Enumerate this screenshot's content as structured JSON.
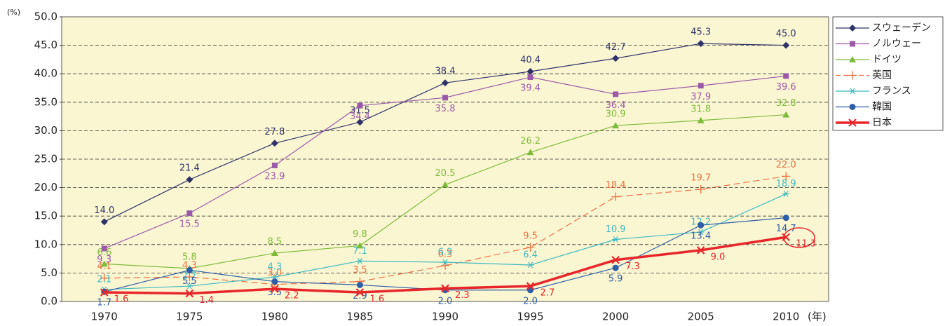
{
  "chart_data": {
    "type": "line",
    "y_label": "(%)",
    "x_label": "(年)",
    "categories": [
      "1970",
      "1975",
      "1980",
      "1985",
      "1990",
      "1995",
      "2000",
      "2005",
      "2010"
    ],
    "ylim": [
      0,
      50
    ],
    "yticks": [
      {
        "value": 0,
        "label": "0.0"
      },
      {
        "value": 5,
        "label": "5.0"
      },
      {
        "value": 10,
        "label": "10.0"
      },
      {
        "value": 15,
        "label": "15.0"
      },
      {
        "value": 20,
        "label": "20.0"
      },
      {
        "value": 25,
        "label": "25.0"
      },
      {
        "value": 30,
        "label": "30.0"
      },
      {
        "value": 35,
        "label": "35.0"
      },
      {
        "value": 40,
        "label": "40.0"
      },
      {
        "value": 45,
        "label": "45.0"
      },
      {
        "value": 50,
        "label": "50.0"
      }
    ],
    "grid": true,
    "legend": "right",
    "series": [
      {
        "name": "スウェーデン",
        "color": "#2e3368",
        "values": [
          14.0,
          21.4,
          27.8,
          31.5,
          38.4,
          40.4,
          42.7,
          45.3,
          45.0
        ],
        "value_labels": [
          "14.0",
          "21.4",
          "27.8",
          "31.5",
          "38.4",
          "40.4",
          "42.7",
          "45.3",
          "45.0"
        ]
      },
      {
        "name": "ノルウェー",
        "color": "#9b5aa8",
        "values": [
          9.3,
          15.5,
          23.9,
          34.4,
          35.8,
          39.4,
          36.4,
          37.9,
          39.6
        ],
        "value_labels": [
          "9.3",
          "15.5",
          "23.9",
          "34.4",
          "35.8",
          "39.4",
          "36.4",
          "37.9",
          "39.6"
        ]
      },
      {
        "name": "ドイツ",
        "color": "#7dbb3a",
        "values": [
          6.6,
          5.8,
          8.5,
          9.8,
          20.5,
          26.2,
          30.9,
          31.8,
          32.8
        ],
        "value_labels": [
          "6.6",
          "5.8",
          "8.5",
          "9.8",
          "20.5",
          "26.2",
          "30.9",
          "31.8",
          "32.8"
        ]
      },
      {
        "name": "英国",
        "color": "#ee7040",
        "values": [
          4.1,
          4.3,
          3.0,
          3.5,
          6.3,
          9.5,
          18.4,
          19.7,
          22.0
        ],
        "value_labels": [
          "4.1",
          "4.3",
          "3.0",
          "3.5",
          "6.3",
          "9.5",
          "18.4",
          "19.7",
          "22.0"
        ]
      },
      {
        "name": "フランス",
        "color": "#3fb9c0",
        "values": [
          2.1,
          2.7,
          4.3,
          7.1,
          6.9,
          6.4,
          10.9,
          12.2,
          18.9
        ],
        "value_labels": [
          "2.1",
          "2.7",
          "4.3",
          "7.1",
          "6.9",
          "6.4",
          "10.9",
          "12.2",
          "18.9"
        ]
      },
      {
        "name": "韓国",
        "color": "#2f5ea8",
        "values": [
          1.7,
          5.5,
          3.5,
          2.9,
          2.0,
          2.0,
          5.9,
          13.4,
          14.7
        ],
        "value_labels": [
          "1.7",
          "5.5",
          "3.5",
          "2.9",
          "2.0",
          "2.0",
          "5.9",
          "13.4",
          "14.7"
        ]
      },
      {
        "name": "日本",
        "color": "#e8262a",
        "values": [
          1.6,
          1.4,
          2.2,
          1.6,
          2.3,
          2.7,
          7.3,
          9.0,
          11.3
        ],
        "value_labels": [
          "1.6",
          "1.4",
          "2.2",
          "1.6",
          "2.3",
          "2.7",
          "7.3",
          "9.0",
          "11.3"
        ]
      }
    ]
  }
}
